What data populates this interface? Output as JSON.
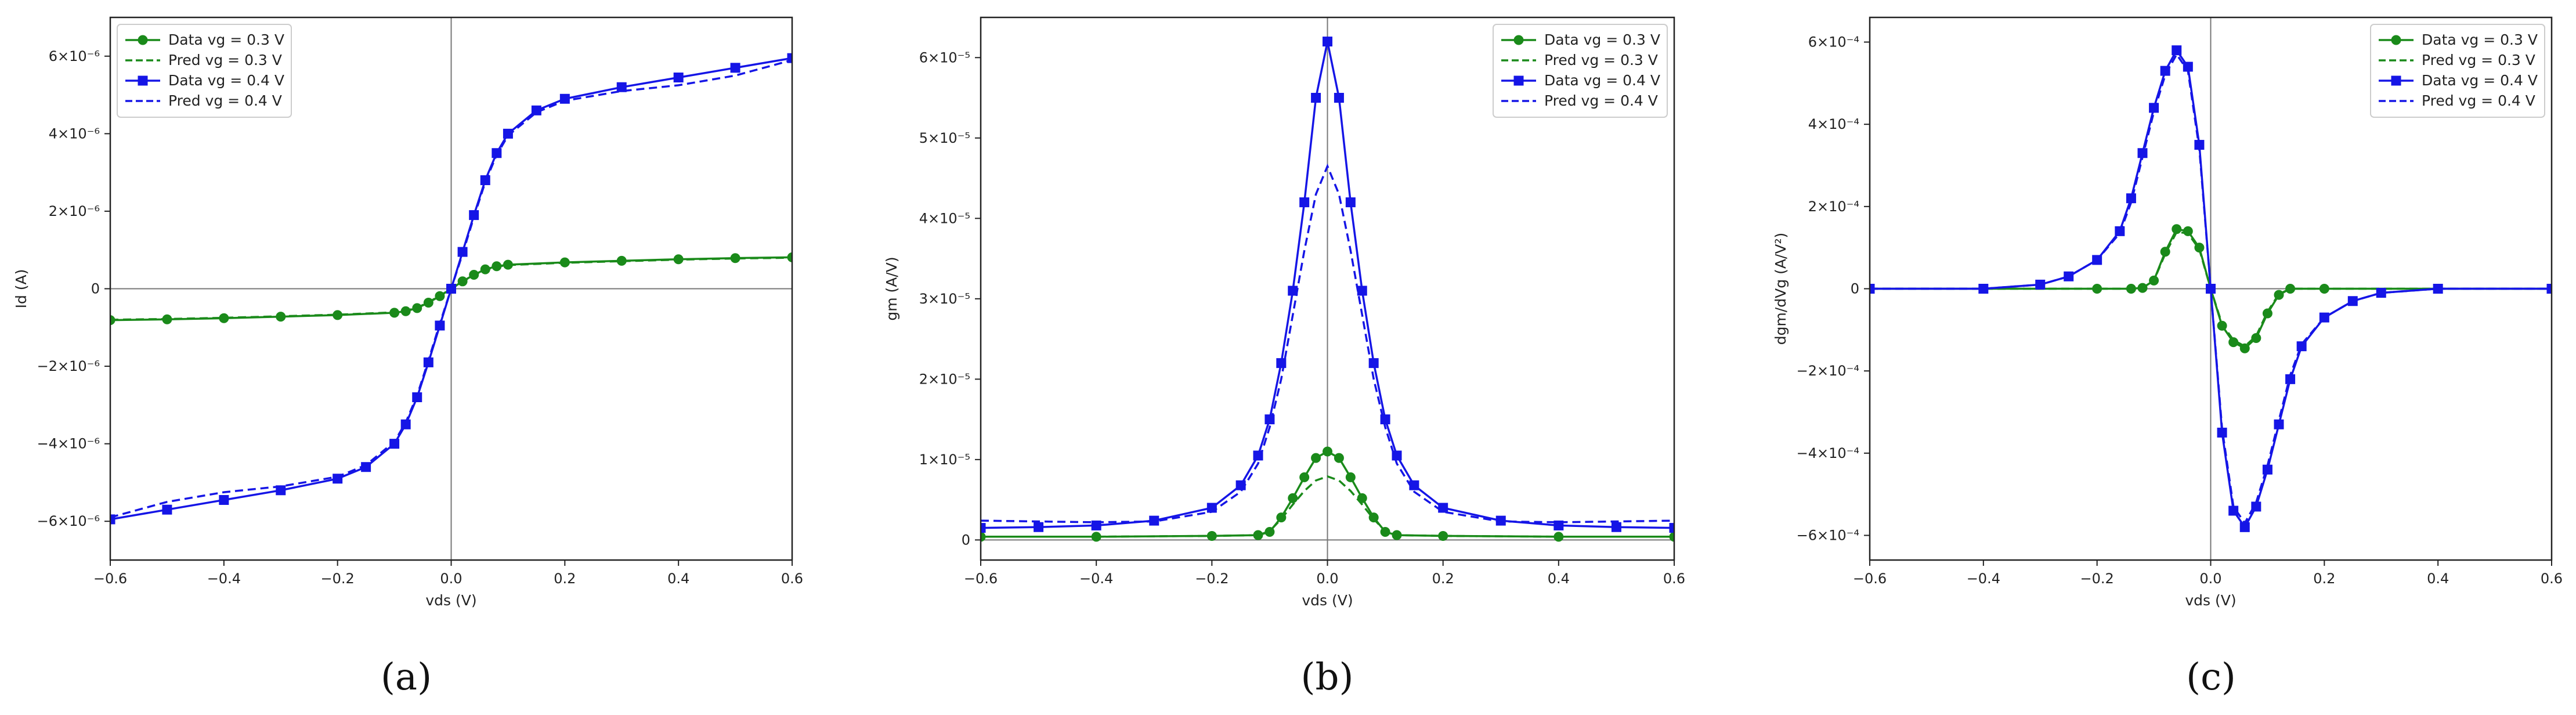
{
  "colors": {
    "green": "#1a8a1a",
    "blue": "#1515e6",
    "refline": "#777777",
    "axis": "#222222"
  },
  "chart_data": [
    {
      "type": "line",
      "panel_label": "(a)",
      "xlabel": "vds (V)",
      "ylabel": "Id (A)",
      "xlim": [
        -0.6,
        0.6
      ],
      "ylim": [
        -7e-06,
        7e-06
      ],
      "xticks": [
        -0.6,
        -0.4,
        -0.2,
        0.0,
        0.2,
        0.4,
        0.6
      ],
      "xtick_labels": [
        "−0.6",
        "−0.4",
        "−0.2",
        "0.0",
        "0.2",
        "0.4",
        "0.6"
      ],
      "yticks": [
        -6e-06,
        -4e-06,
        -2e-06,
        0,
        2e-06,
        4e-06,
        6e-06
      ],
      "ytick_labels": [
        "−6×10⁻⁶",
        "−4×10⁻⁶",
        "−2×10⁻⁶",
        "0",
        "2×10⁻⁶",
        "4×10⁻⁶",
        "6×10⁻⁶"
      ],
      "legend_position": "top-left",
      "grid": false,
      "series": [
        {
          "name": "Data vg = 0.3 V",
          "style": "solid",
          "marker": "circle",
          "color": "green",
          "x": [
            -0.6,
            -0.5,
            -0.4,
            -0.3,
            -0.2,
            -0.1,
            -0.08,
            -0.06,
            -0.04,
            -0.02,
            0,
            0.02,
            0.04,
            0.06,
            0.08,
            0.1,
            0.2,
            0.3,
            0.4,
            0.5,
            0.6
          ],
          "y": [
            -8.1e-07,
            -7.9e-07,
            -7.6e-07,
            -7.2e-07,
            -6.8e-07,
            -6.2e-07,
            -5.8e-07,
            -5e-07,
            -3.6e-07,
            -1.9e-07,
            0,
            1.9e-07,
            3.6e-07,
            5e-07,
            5.8e-07,
            6.2e-07,
            6.8e-07,
            7.2e-07,
            7.6e-07,
            7.9e-07,
            8.1e-07
          ]
        },
        {
          "name": "Pred vg = 0.3 V",
          "style": "dashed",
          "marker": "none",
          "color": "green",
          "x": [
            -0.6,
            -0.5,
            -0.4,
            -0.3,
            -0.2,
            -0.1,
            -0.08,
            -0.06,
            -0.04,
            -0.02,
            0,
            0.02,
            0.04,
            0.06,
            0.08,
            0.1,
            0.2,
            0.3,
            0.4,
            0.5,
            0.6
          ],
          "y": [
            -8e-07,
            -7.8e-07,
            -7.5e-07,
            -7.1e-07,
            -6.7e-07,
            -6.1e-07,
            -5.7e-07,
            -4.9e-07,
            -3.5e-07,
            -1.8e-07,
            0,
            1.8e-07,
            3.5e-07,
            4.9e-07,
            5.7e-07,
            6.1e-07,
            6.7e-07,
            7.1e-07,
            7.5e-07,
            7.8e-07,
            8e-07
          ]
        },
        {
          "name": "Data vg = 0.4 V",
          "style": "solid",
          "marker": "square",
          "color": "blue",
          "x": [
            -0.6,
            -0.5,
            -0.4,
            -0.3,
            -0.2,
            -0.15,
            -0.1,
            -0.08,
            -0.06,
            -0.04,
            -0.02,
            0,
            0.02,
            0.04,
            0.06,
            0.08,
            0.1,
            0.15,
            0.2,
            0.3,
            0.4,
            0.5,
            0.6
          ],
          "y": [
            -5.95e-06,
            -5.7e-06,
            -5.45e-06,
            -5.2e-06,
            -4.9e-06,
            -4.6e-06,
            -4e-06,
            -3.5e-06,
            -2.8e-06,
            -1.9e-06,
            -9.5e-07,
            0,
            9.5e-07,
            1.9e-06,
            2.8e-06,
            3.5e-06,
            4e-06,
            4.6e-06,
            4.9e-06,
            5.2e-06,
            5.45e-06,
            5.7e-06,
            5.95e-06
          ]
        },
        {
          "name": "Pred vg = 0.4 V",
          "style": "dashed",
          "marker": "none",
          "color": "blue",
          "x": [
            -0.6,
            -0.5,
            -0.4,
            -0.3,
            -0.2,
            -0.15,
            -0.1,
            -0.08,
            -0.06,
            -0.04,
            -0.02,
            0,
            0.02,
            0.04,
            0.06,
            0.08,
            0.1,
            0.15,
            0.2,
            0.3,
            0.4,
            0.5,
            0.6
          ],
          "y": [
            -5.9e-06,
            -5.5e-06,
            -5.25e-06,
            -5.1e-06,
            -4.85e-06,
            -4.55e-06,
            -3.95e-06,
            -3.45e-06,
            -2.75e-06,
            -1.85e-06,
            -9e-07,
            0,
            9e-07,
            1.85e-06,
            2.75e-06,
            3.45e-06,
            3.95e-06,
            4.55e-06,
            4.85e-06,
            5.1e-06,
            5.25e-06,
            5.5e-06,
            5.9e-06
          ]
        }
      ]
    },
    {
      "type": "line",
      "panel_label": "(b)",
      "xlabel": "vds (V)",
      "ylabel": "gm (A/V)",
      "xlim": [
        -0.6,
        0.6
      ],
      "ylim": [
        -2.5e-06,
        6.5e-05
      ],
      "xticks": [
        -0.6,
        -0.4,
        -0.2,
        0.0,
        0.2,
        0.4,
        0.6
      ],
      "xtick_labels": [
        "−0.6",
        "−0.4",
        "−0.2",
        "0.0",
        "0.2",
        "0.4",
        "0.6"
      ],
      "yticks": [
        0,
        1e-05,
        2e-05,
        3e-05,
        4e-05,
        5e-05,
        6e-05
      ],
      "ytick_labels": [
        "0",
        "1×10⁻⁵",
        "2×10⁻⁵",
        "3×10⁻⁵",
        "4×10⁻⁵",
        "5×10⁻⁵",
        "6×10⁻⁵"
      ],
      "legend_position": "top-right",
      "grid": false,
      "series": [
        {
          "name": "Data vg = 0.3 V",
          "style": "solid",
          "marker": "circle",
          "color": "green",
          "x": [
            -0.6,
            -0.4,
            -0.2,
            -0.12,
            -0.1,
            -0.08,
            -0.06,
            -0.04,
            -0.02,
            0,
            0.02,
            0.04,
            0.06,
            0.08,
            0.1,
            0.12,
            0.2,
            0.4,
            0.6
          ],
          "y": [
            4e-07,
            4e-07,
            5e-07,
            6e-07,
            1e-06,
            2.8e-06,
            5.2e-06,
            7.8e-06,
            1.02e-05,
            1.1e-05,
            1.02e-05,
            7.8e-06,
            5.2e-06,
            2.8e-06,
            1e-06,
            6e-07,
            5e-07,
            4e-07,
            4e-07
          ]
        },
        {
          "name": "Pred vg = 0.3 V",
          "style": "dashed",
          "marker": "none",
          "color": "green",
          "x": [
            -0.6,
            -0.4,
            -0.2,
            -0.12,
            -0.1,
            -0.08,
            -0.06,
            -0.04,
            -0.02,
            0,
            0.02,
            0.04,
            0.06,
            0.08,
            0.1,
            0.12,
            0.2,
            0.4,
            0.6
          ],
          "y": [
            4e-07,
            4e-07,
            5e-07,
            6e-07,
            1.1e-06,
            2.6e-06,
            4.4e-06,
            6.1e-06,
            7.4e-06,
            7.9e-06,
            7.4e-06,
            6.1e-06,
            4.4e-06,
            2.6e-06,
            1.1e-06,
            6e-07,
            5e-07,
            4e-07,
            4e-07
          ]
        },
        {
          "name": "Data vg = 0.4 V",
          "style": "solid",
          "marker": "square",
          "color": "blue",
          "x": [
            -0.6,
            -0.5,
            -0.4,
            -0.3,
            -0.2,
            -0.15,
            -0.12,
            -0.1,
            -0.08,
            -0.06,
            -0.04,
            -0.02,
            0,
            0.02,
            0.04,
            0.06,
            0.08,
            0.1,
            0.12,
            0.15,
            0.2,
            0.3,
            0.4,
            0.5,
            0.6
          ],
          "y": [
            1.5e-06,
            1.6e-06,
            1.8e-06,
            2.4e-06,
            4e-06,
            6.8e-06,
            1.05e-05,
            1.5e-05,
            2.2e-05,
            3.1e-05,
            4.2e-05,
            5.5e-05,
            6.2e-05,
            5.5e-05,
            4.2e-05,
            3.1e-05,
            2.2e-05,
            1.5e-05,
            1.05e-05,
            6.8e-06,
            4e-06,
            2.4e-06,
            1.8e-06,
            1.6e-06,
            1.5e-06
          ]
        },
        {
          "name": "Pred vg = 0.4 V",
          "style": "dashed",
          "marker": "none",
          "color": "blue",
          "x": [
            -0.6,
            -0.5,
            -0.4,
            -0.3,
            -0.2,
            -0.15,
            -0.12,
            -0.1,
            -0.08,
            -0.06,
            -0.04,
            -0.02,
            0,
            0.02,
            0.04,
            0.06,
            0.08,
            0.1,
            0.12,
            0.15,
            0.2,
            0.3,
            0.4,
            0.5,
            0.6
          ],
          "y": [
            2.4e-06,
            2.3e-06,
            2.2e-06,
            2.3e-06,
            3.5e-06,
            6e-06,
            9.5e-06,
            1.4e-05,
            2e-05,
            2.8e-05,
            3.6e-05,
            4.3e-05,
            4.65e-05,
            4.3e-05,
            3.6e-05,
            2.8e-05,
            2e-05,
            1.4e-05,
            9.5e-06,
            6e-06,
            3.5e-06,
            2.3e-06,
            2.2e-06,
            2.3e-06,
            2.4e-06
          ]
        }
      ]
    },
    {
      "type": "line",
      "panel_label": "(c)",
      "xlabel": "vds (V)",
      "ylabel": "dgm/dVg (A/V²)",
      "xlim": [
        -0.6,
        0.6
      ],
      "ylim": [
        -0.00066,
        0.00066
      ],
      "xticks": [
        -0.6,
        -0.4,
        -0.2,
        0.0,
        0.2,
        0.4,
        0.6
      ],
      "xtick_labels": [
        "−0.6",
        "−0.4",
        "−0.2",
        "0.0",
        "0.2",
        "0.4",
        "0.6"
      ],
      "yticks": [
        -0.0006,
        -0.0004,
        -0.0002,
        0,
        0.0002,
        0.0004,
        0.0006
      ],
      "ytick_labels": [
        "−6×10⁻⁴",
        "−4×10⁻⁴",
        "−2×10⁻⁴",
        "0",
        "2×10⁻⁴",
        "4×10⁻⁴",
        "6×10⁻⁴"
      ],
      "legend_position": "top-right",
      "grid": false,
      "series": [
        {
          "name": "Data vg = 0.3 V",
          "style": "solid",
          "marker": "circle",
          "color": "green",
          "x": [
            -0.6,
            -0.4,
            -0.2,
            -0.14,
            -0.12,
            -0.1,
            -0.08,
            -0.06,
            -0.04,
            -0.02,
            0,
            0.02,
            0.04,
            0.06,
            0.08,
            0.1,
            0.12,
            0.14,
            0.2,
            0.4,
            0.6
          ],
          "y": [
            0,
            0,
            0,
            0,
            2e-06,
            2e-05,
            9e-05,
            0.000145,
            0.00014,
            0.0001,
            0,
            -9e-05,
            -0.00013,
            -0.000145,
            -0.00012,
            -6e-05,
            -1.5e-05,
            0,
            0,
            0,
            0
          ]
        },
        {
          "name": "Pred vg = 0.3 V",
          "style": "dashed",
          "marker": "none",
          "color": "green",
          "x": [
            -0.6,
            -0.4,
            -0.2,
            -0.14,
            -0.12,
            -0.1,
            -0.08,
            -0.06,
            -0.04,
            -0.02,
            0,
            0.02,
            0.04,
            0.06,
            0.08,
            0.1,
            0.12,
            0.14,
            0.2,
            0.4,
            0.6
          ],
          "y": [
            0,
            0,
            0,
            0,
            2e-06,
            2e-05,
            8.5e-05,
            0.000138,
            0.000135,
            9.6e-05,
            0,
            -8.6e-05,
            -0.000125,
            -0.00014,
            -0.000115,
            -5.6e-05,
            -1.3e-05,
            0,
            0,
            0,
            0
          ]
        },
        {
          "name": "Data vg = 0.4 V",
          "style": "solid",
          "marker": "square",
          "color": "blue",
          "x": [
            -0.6,
            -0.4,
            -0.3,
            -0.25,
            -0.2,
            -0.16,
            -0.14,
            -0.12,
            -0.1,
            -0.08,
            -0.06,
            -0.04,
            -0.02,
            0,
            0.02,
            0.04,
            0.06,
            0.08,
            0.1,
            0.12,
            0.14,
            0.16,
            0.2,
            0.25,
            0.3,
            0.4,
            0.6
          ],
          "y": [
            0,
            0,
            1e-05,
            3e-05,
            7e-05,
            0.00014,
            0.00022,
            0.00033,
            0.00044,
            0.00053,
            0.00058,
            0.00054,
            0.00035,
            0,
            -0.00035,
            -0.00054,
            -0.00058,
            -0.00053,
            -0.00044,
            -0.00033,
            -0.00022,
            -0.00014,
            -7e-05,
            -3e-05,
            -1e-05,
            0,
            0
          ]
        },
        {
          "name": "Pred vg = 0.4 V",
          "style": "dashed",
          "marker": "none",
          "color": "blue",
          "x": [
            -0.6,
            -0.4,
            -0.3,
            -0.25,
            -0.2,
            -0.16,
            -0.14,
            -0.12,
            -0.1,
            -0.08,
            -0.06,
            -0.04,
            -0.02,
            0,
            0.02,
            0.04,
            0.06,
            0.08,
            0.1,
            0.12,
            0.14,
            0.16,
            0.2,
            0.25,
            0.3,
            0.4,
            0.6
          ],
          "y": [
            0,
            0,
            1e-05,
            3e-05,
            7e-05,
            0.000135,
            0.00021,
            0.00032,
            0.00043,
            0.00052,
            0.00057,
            0.00053,
            0.00034,
            0,
            -0.00034,
            -0.00053,
            -0.00057,
            -0.00052,
            -0.00043,
            -0.00032,
            -0.00021,
            -0.000135,
            -7e-05,
            -3e-05,
            -1e-05,
            0,
            0
          ]
        }
      ]
    }
  ]
}
